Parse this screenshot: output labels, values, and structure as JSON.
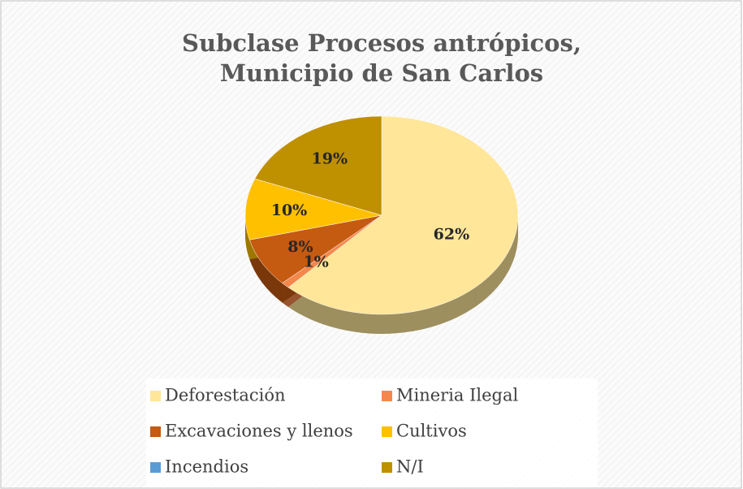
{
  "chart_data": {
    "type": "pie",
    "title": "Subclase Procesos antrópicos, Municipio de San Carlos",
    "categories": [
      "Deforestación",
      "Mineria Ilegal",
      "Excavaciones y llenos",
      "Cultivos",
      "Incendios",
      "N/I"
    ],
    "values": [
      62,
      1,
      8,
      10,
      0,
      19
    ],
    "value_labels": [
      "62%",
      "1%",
      "8%",
      "10%",
      null,
      "19%"
    ],
    "colors": [
      "#FFE699",
      "#F4874B",
      "#C55A11",
      "#FFC000",
      "#5B9BD5",
      "#BF9000"
    ],
    "legend": "bottom"
  }
}
